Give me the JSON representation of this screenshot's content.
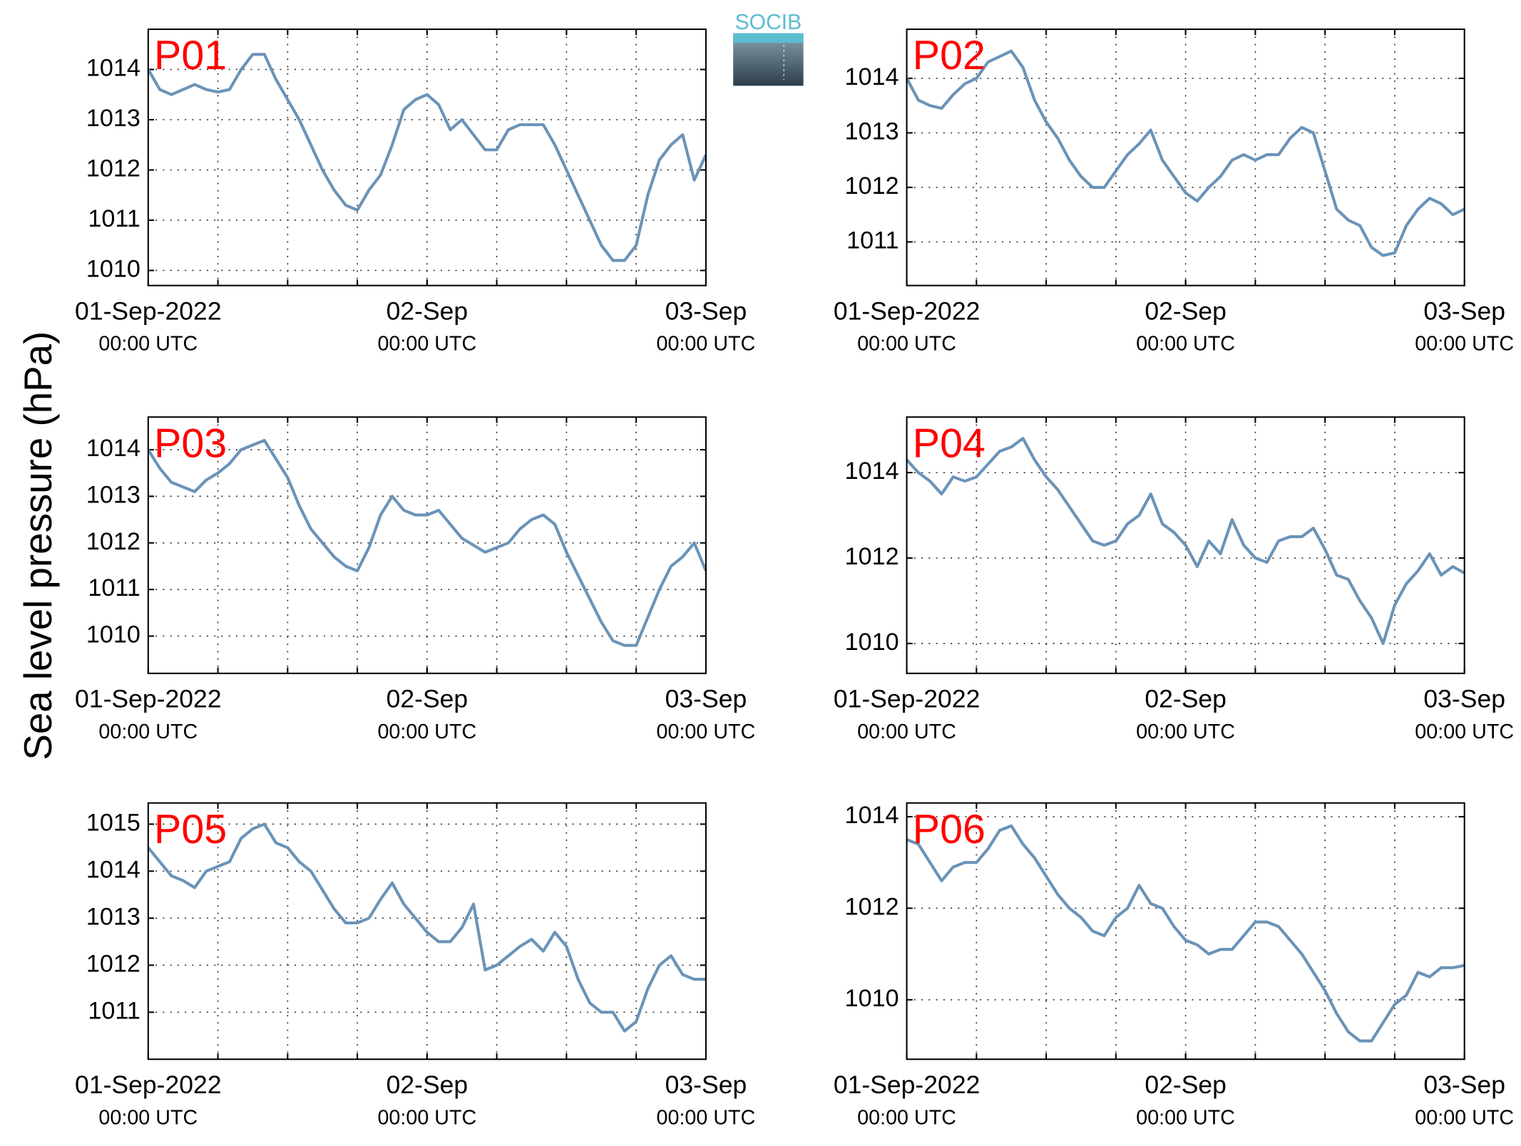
{
  "logo": "SOCIB",
  "y_label": "Sea level pressure (hPa)",
  "chart_data": [
    {
      "type": "line",
      "title": "P01",
      "title_color": "#ff0000",
      "color": "#6a93b8",
      "grid": true,
      "x": [
        0,
        1,
        2,
        3,
        4,
        5,
        6,
        7,
        8,
        9,
        10,
        11,
        12,
        13,
        14,
        15,
        16,
        17,
        18,
        19,
        20,
        21,
        22,
        23,
        24,
        25,
        26,
        27,
        28,
        29,
        30,
        31,
        32,
        33,
        34,
        35,
        36,
        37,
        38,
        39,
        40,
        41,
        42,
        43,
        44,
        45,
        46,
        47,
        48
      ],
      "values": [
        1014.0,
        1013.6,
        1013.5,
        1013.6,
        1013.7,
        1013.6,
        1013.55,
        1013.6,
        1014.0,
        1014.3,
        1014.3,
        1013.8,
        1013.4,
        1013.0,
        1012.5,
        1012.0,
        1011.6,
        1011.3,
        1011.2,
        1011.6,
        1011.9,
        1012.5,
        1013.2,
        1013.4,
        1013.5,
        1013.3,
        1012.8,
        1013.0,
        1012.7,
        1012.4,
        1012.4,
        1012.8,
        1012.9,
        1012.9,
        1012.9,
        1012.5,
        1012.0,
        1011.5,
        1011.0,
        1010.5,
        1010.2,
        1010.2,
        1010.5,
        1011.5,
        1012.2,
        1012.5,
        1012.7,
        1011.8,
        1012.3
      ],
      "xlim": [
        0,
        48
      ],
      "xgrid": [
        6,
        12,
        18,
        24,
        30,
        36,
        42
      ],
      "xticks": [
        {
          "value": 0,
          "label": "01-Sep-2022",
          "sublabel": "00:00 UTC"
        },
        {
          "value": 24,
          "label": "02-Sep",
          "sublabel": "00:00 UTC"
        },
        {
          "value": 48,
          "label": "03-Sep",
          "sublabel": "00:00 UTC"
        }
      ],
      "ylim": [
        1009.7,
        1014.8
      ],
      "yticks": [
        1010,
        1011,
        1012,
        1013,
        1014
      ]
    },
    {
      "type": "line",
      "title": "P02",
      "title_color": "#ff0000",
      "color": "#6a93b8",
      "grid": true,
      "x": [
        0,
        1,
        2,
        3,
        4,
        5,
        6,
        7,
        8,
        9,
        10,
        11,
        12,
        13,
        14,
        15,
        16,
        17,
        18,
        19,
        20,
        21,
        22,
        23,
        24,
        25,
        26,
        27,
        28,
        29,
        30,
        31,
        32,
        33,
        34,
        35,
        36,
        37,
        38,
        39,
        40,
        41,
        42,
        43,
        44,
        45,
        46,
        47,
        48
      ],
      "values": [
        1014.0,
        1013.6,
        1013.5,
        1013.45,
        1013.7,
        1013.9,
        1014.0,
        1014.3,
        1014.4,
        1014.5,
        1014.2,
        1013.6,
        1013.2,
        1012.9,
        1012.5,
        1012.2,
        1012.0,
        1012.0,
        1012.3,
        1012.6,
        1012.8,
        1013.05,
        1012.5,
        1012.2,
        1011.9,
        1011.75,
        1012.0,
        1012.2,
        1012.5,
        1012.6,
        1012.5,
        1012.6,
        1012.6,
        1012.9,
        1013.1,
        1013.0,
        1012.3,
        1011.6,
        1011.4,
        1011.3,
        1010.9,
        1010.75,
        1010.8,
        1011.3,
        1011.6,
        1011.8,
        1011.7,
        1011.5,
        1011.6
      ],
      "xlim": [
        0,
        48
      ],
      "xgrid": [
        6,
        12,
        18,
        24,
        30,
        36,
        42
      ],
      "xticks": [
        {
          "value": 0,
          "label": "01-Sep-2022",
          "sublabel": "00:00 UTC"
        },
        {
          "value": 24,
          "label": "02-Sep",
          "sublabel": "00:00 UTC"
        },
        {
          "value": 48,
          "label": "03-Sep",
          "sublabel": "00:00 UTC"
        }
      ],
      "ylim": [
        1010.2,
        1014.9
      ],
      "yticks": [
        1011,
        1012,
        1013,
        1014
      ]
    },
    {
      "type": "line",
      "title": "P03",
      "title_color": "#ff0000",
      "color": "#6a93b8",
      "grid": true,
      "x": [
        0,
        1,
        2,
        3,
        4,
        5,
        6,
        7,
        8,
        9,
        10,
        11,
        12,
        13,
        14,
        15,
        16,
        17,
        18,
        19,
        20,
        21,
        22,
        23,
        24,
        25,
        26,
        27,
        28,
        29,
        30,
        31,
        32,
        33,
        34,
        35,
        36,
        37,
        38,
        39,
        40,
        41,
        42,
        43,
        44,
        45,
        46,
        47,
        48
      ],
      "values": [
        1014.0,
        1013.6,
        1013.3,
        1013.2,
        1013.1,
        1013.35,
        1013.5,
        1013.7,
        1014.0,
        1014.1,
        1014.2,
        1013.8,
        1013.4,
        1012.8,
        1012.3,
        1012.0,
        1011.7,
        1011.5,
        1011.4,
        1011.9,
        1012.6,
        1013.0,
        1012.7,
        1012.6,
        1012.6,
        1012.7,
        1012.4,
        1012.1,
        1011.95,
        1011.8,
        1011.9,
        1012.0,
        1012.3,
        1012.5,
        1012.6,
        1012.4,
        1011.8,
        1011.3,
        1010.8,
        1010.3,
        1009.9,
        1009.8,
        1009.8,
        1010.4,
        1011.0,
        1011.5,
        1011.7,
        1012.0,
        1011.4
      ],
      "xlim": [
        0,
        48
      ],
      "xgrid": [
        6,
        12,
        18,
        24,
        30,
        36,
        42
      ],
      "xticks": [
        {
          "value": 0,
          "label": "01-Sep-2022",
          "sublabel": "00:00 UTC"
        },
        {
          "value": 24,
          "label": "02-Sep",
          "sublabel": "00:00 UTC"
        },
        {
          "value": 48,
          "label": "03-Sep",
          "sublabel": "00:00 UTC"
        }
      ],
      "ylim": [
        1009.2,
        1014.7
      ],
      "yticks": [
        1010,
        1011,
        1012,
        1013,
        1014
      ]
    },
    {
      "type": "line",
      "title": "P04",
      "title_color": "#ff0000",
      "color": "#6a93b8",
      "grid": true,
      "x": [
        0,
        1,
        2,
        3,
        4,
        5,
        6,
        7,
        8,
        9,
        10,
        11,
        12,
        13,
        14,
        15,
        16,
        17,
        18,
        19,
        20,
        21,
        22,
        23,
        24,
        25,
        26,
        27,
        28,
        29,
        30,
        31,
        32,
        33,
        34,
        35,
        36,
        37,
        38,
        39,
        40,
        41,
        42,
        43,
        44,
        45,
        46,
        47,
        48
      ],
      "values": [
        1014.3,
        1014.0,
        1013.8,
        1013.5,
        1013.9,
        1013.8,
        1013.9,
        1014.2,
        1014.5,
        1014.6,
        1014.8,
        1014.3,
        1013.9,
        1013.6,
        1013.2,
        1012.8,
        1012.4,
        1012.3,
        1012.4,
        1012.8,
        1013.0,
        1013.5,
        1012.8,
        1012.6,
        1012.3,
        1011.8,
        1012.4,
        1012.1,
        1012.9,
        1012.3,
        1012.0,
        1011.9,
        1012.4,
        1012.5,
        1012.5,
        1012.7,
        1012.2,
        1011.6,
        1011.5,
        1011.0,
        1010.6,
        1010.0,
        1010.9,
        1011.4,
        1011.7,
        1012.1,
        1011.6,
        1011.8,
        1011.65
      ],
      "xlim": [
        0,
        48
      ],
      "xgrid": [
        6,
        12,
        18,
        24,
        30,
        36,
        42
      ],
      "xticks": [
        {
          "value": 0,
          "label": "01-Sep-2022",
          "sublabel": "00:00 UTC"
        },
        {
          "value": 24,
          "label": "02-Sep",
          "sublabel": "00:00 UTC"
        },
        {
          "value": 48,
          "label": "03-Sep",
          "sublabel": "00:00 UTC"
        }
      ],
      "ylim": [
        1009.3,
        1015.3
      ],
      "yticks": [
        1010,
        1012,
        1014
      ]
    },
    {
      "type": "line",
      "title": "P05",
      "title_color": "#ff0000",
      "color": "#6a93b8",
      "grid": true,
      "x": [
        0,
        1,
        2,
        3,
        4,
        5,
        6,
        7,
        8,
        9,
        10,
        11,
        12,
        13,
        14,
        15,
        16,
        17,
        18,
        19,
        20,
        21,
        22,
        23,
        24,
        25,
        26,
        27,
        28,
        29,
        30,
        31,
        32,
        33,
        34,
        35,
        36,
        37,
        38,
        39,
        40,
        41,
        42,
        43,
        44,
        45,
        46,
        47,
        48
      ],
      "values": [
        1014.5,
        1014.2,
        1013.9,
        1013.8,
        1013.65,
        1014.0,
        1014.1,
        1014.2,
        1014.7,
        1014.9,
        1015.0,
        1014.6,
        1014.5,
        1014.2,
        1014.0,
        1013.6,
        1013.2,
        1012.9,
        1012.9,
        1013.0,
        1013.4,
        1013.75,
        1013.3,
        1013.0,
        1012.7,
        1012.5,
        1012.5,
        1012.8,
        1013.3,
        1011.9,
        1012.0,
        1012.2,
        1012.4,
        1012.55,
        1012.3,
        1012.7,
        1012.4,
        1011.7,
        1011.2,
        1011.0,
        1011.0,
        1010.6,
        1010.8,
        1011.5,
        1012.0,
        1012.2,
        1011.8,
        1011.7,
        1011.7
      ],
      "xlim": [
        0,
        48
      ],
      "xgrid": [
        6,
        12,
        18,
        24,
        30,
        36,
        42
      ],
      "xticks": [
        {
          "value": 0,
          "label": "01-Sep-2022",
          "sublabel": "00:00 UTC"
        },
        {
          "value": 24,
          "label": "02-Sep",
          "sublabel": "00:00 UTC"
        },
        {
          "value": 48,
          "label": "03-Sep",
          "sublabel": "00:00 UTC"
        }
      ],
      "ylim": [
        1010,
        1015.45
      ],
      "yticks": [
        1011,
        1012,
        1013,
        1014,
        1015
      ]
    },
    {
      "type": "line",
      "title": "P06",
      "title_color": "#ff0000",
      "color": "#6a93b8",
      "grid": true,
      "x": [
        0,
        1,
        2,
        3,
        4,
        5,
        6,
        7,
        8,
        9,
        10,
        11,
        12,
        13,
        14,
        15,
        16,
        17,
        18,
        19,
        20,
        21,
        22,
        23,
        24,
        25,
        26,
        27,
        28,
        29,
        30,
        31,
        32,
        33,
        34,
        35,
        36,
        37,
        38,
        39,
        40,
        41,
        42,
        43,
        44,
        45,
        46,
        47,
        48
      ],
      "values": [
        1013.5,
        1013.4,
        1013.0,
        1012.6,
        1012.9,
        1013.0,
        1013.0,
        1013.3,
        1013.7,
        1013.8,
        1013.4,
        1013.1,
        1012.7,
        1012.3,
        1012.0,
        1011.8,
        1011.5,
        1011.4,
        1011.8,
        1012.0,
        1012.5,
        1012.1,
        1012.0,
        1011.6,
        1011.3,
        1011.2,
        1011.0,
        1011.1,
        1011.1,
        1011.4,
        1011.7,
        1011.7,
        1011.6,
        1011.3,
        1011.0,
        1010.6,
        1010.2,
        1009.7,
        1009.3,
        1009.1,
        1009.1,
        1009.5,
        1009.9,
        1010.1,
        1010.6,
        1010.5,
        1010.7,
        1010.7,
        1010.75
      ],
      "xlim": [
        0,
        48
      ],
      "xgrid": [
        6,
        12,
        18,
        24,
        30,
        36,
        42
      ],
      "xticks": [
        {
          "value": 0,
          "label": "01-Sep-2022",
          "sublabel": "00:00 UTC"
        },
        {
          "value": 24,
          "label": "02-Sep",
          "sublabel": "00:00 UTC"
        },
        {
          "value": 48,
          "label": "03-Sep",
          "sublabel": "00:00 UTC"
        }
      ],
      "ylim": [
        1008.7,
        1014.3
      ],
      "yticks": [
        1010,
        1012,
        1014
      ]
    }
  ]
}
